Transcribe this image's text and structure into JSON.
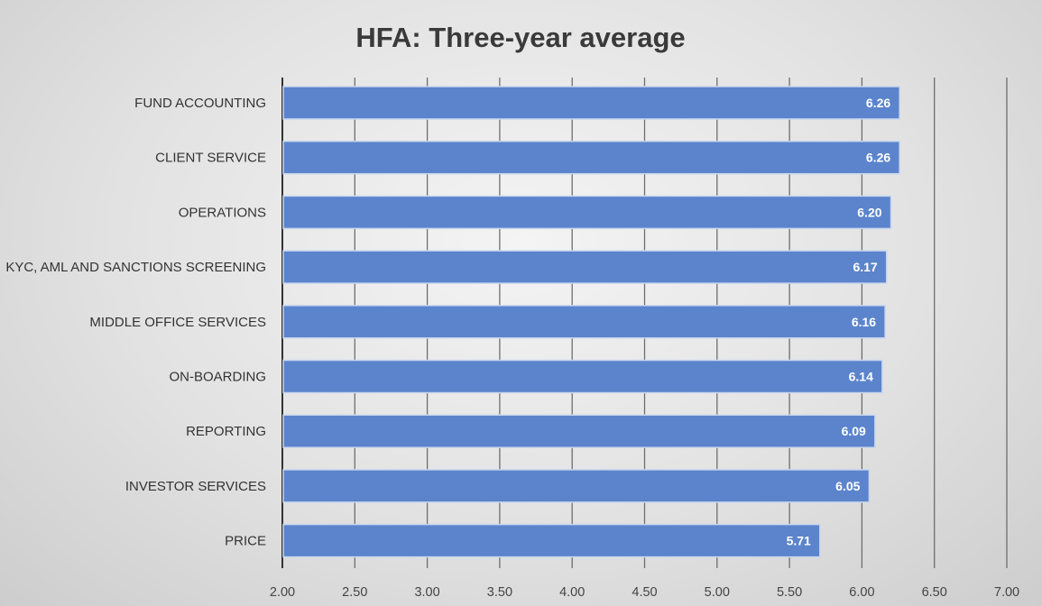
{
  "chart_data": {
    "type": "bar",
    "orientation": "horizontal",
    "title": "HFA: Three-year average",
    "categories": [
      "FUND ACCOUNTING",
      "CLIENT SERVICE",
      "OPERATIONS",
      "KYC, AML AND SANCTIONS SCREENING",
      "MIDDLE OFFICE SERVICES",
      "ON-BOARDING",
      "REPORTING",
      "INVESTOR SERVICES",
      "PRICE"
    ],
    "values": [
      6.26,
      6.26,
      6.2,
      6.17,
      6.16,
      6.14,
      6.09,
      6.05,
      5.71
    ],
    "data_labels": [
      "6.26",
      "6.26",
      "6.20",
      "6.17",
      "6.16",
      "6.14",
      "6.09",
      "6.05",
      "5.71"
    ],
    "xlim": [
      2.0,
      7.0
    ],
    "x_ticks": [
      "2.00",
      "2.50",
      "3.00",
      "3.50",
      "4.00",
      "4.50",
      "5.00",
      "5.50",
      "6.00",
      "6.50",
      "7.00"
    ],
    "xlabel": "",
    "ylabel": "",
    "grid": "vertical",
    "legend": "none",
    "bar_color": "#5b84cc",
    "gridline_color": "#6e6e6e"
  }
}
